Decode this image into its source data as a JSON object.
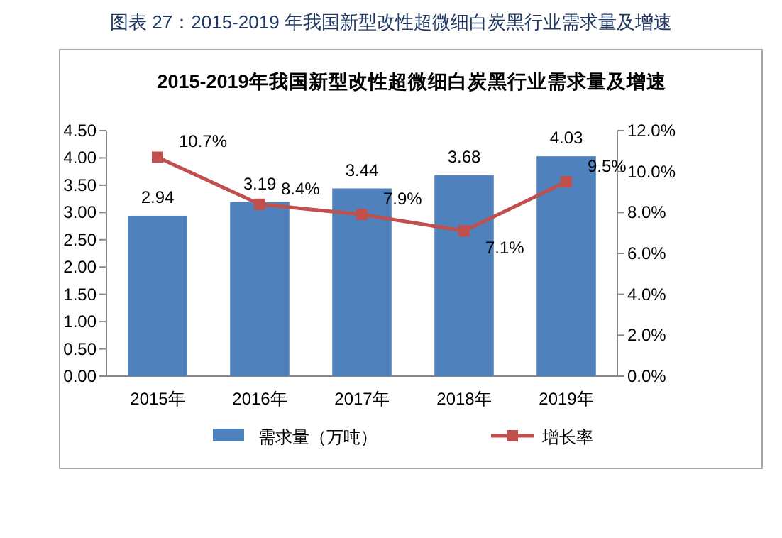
{
  "chart_data": {
    "type": "bar",
    "title": "2015-2019年我国新型改性超微细白炭黑行业需求量及增速",
    "annotations": [
      "图表 27：2015-2019 年我国新型改性超微细白炭黑行业需求量及增速"
    ],
    "categories": [
      "2015年",
      "2016年",
      "2017年",
      "2018年",
      "2019年"
    ],
    "series": [
      {
        "name": "需求量（万吨）",
        "color": "#4f81bd",
        "values": [
          2.94,
          3.19,
          3.44,
          3.68,
          4.03
        ],
        "value_labels": [
          "2.94",
          "3.19",
          "3.44",
          "3.68",
          "4.03"
        ]
      },
      {
        "name": "增长率",
        "type": "line",
        "axis": "y2",
        "color": "#c0504d",
        "marker": "square",
        "values": [
          10.7,
          8.4,
          7.9,
          7.1,
          9.5
        ],
        "value_labels": [
          "10.7%",
          "8.4%",
          "7.9%",
          "7.1%",
          "9.5%"
        ]
      }
    ],
    "ylim": [
      0,
      4.5
    ],
    "yticks": [
      {
        "value": 0,
        "label": "0.00"
      },
      {
        "value": 0.5,
        "label": "0.50"
      },
      {
        "value": 1,
        "label": "1.00"
      },
      {
        "value": 1.5,
        "label": "1.50"
      },
      {
        "value": 2,
        "label": "2.00"
      },
      {
        "value": 2.5,
        "label": "2.50"
      },
      {
        "value": 3,
        "label": "3.00"
      },
      {
        "value": 3.5,
        "label": "3.50"
      },
      {
        "value": 4,
        "label": "4.00"
      },
      {
        "value": 4.5,
        "label": "4.50"
      }
    ],
    "y2lim": [
      0,
      12
    ],
    "y2ticks": [
      {
        "value": 0,
        "label": "0.0%"
      },
      {
        "value": 2,
        "label": "2.0%"
      },
      {
        "value": 4,
        "label": "4.0%"
      },
      {
        "value": 6,
        "label": "6.0%"
      },
      {
        "value": 8,
        "label": "8.0%"
      },
      {
        "value": 10,
        "label": "10.0%"
      },
      {
        "value": 12,
        "label": "12.0%"
      }
    ],
    "legend": "bottom"
  }
}
